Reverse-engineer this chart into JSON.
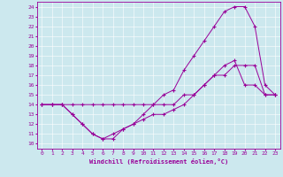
{
  "xlabel": "Windchill (Refroidissement éolien,°C)",
  "background_color": "#cce8ee",
  "line_color": "#990099",
  "xlim": [
    -0.5,
    23.5
  ],
  "ylim": [
    9.5,
    24.5
  ],
  "xticks": [
    0,
    1,
    2,
    3,
    4,
    5,
    6,
    7,
    8,
    9,
    10,
    11,
    12,
    13,
    14,
    15,
    16,
    17,
    18,
    19,
    20,
    21,
    22,
    23
  ],
  "yticks": [
    10,
    11,
    12,
    13,
    14,
    15,
    16,
    17,
    18,
    19,
    20,
    21,
    22,
    23,
    24
  ],
  "line1_x": [
    0,
    1,
    2,
    3,
    4,
    5,
    6,
    7,
    8,
    9,
    10,
    11,
    12,
    13,
    14,
    15,
    16,
    17,
    18,
    19,
    20,
    21,
    22,
    23
  ],
  "line1_y": [
    14,
    14,
    14,
    14,
    14,
    14,
    14,
    14,
    14,
    14,
    14,
    14,
    14,
    14,
    15,
    15,
    16,
    17,
    17,
    18,
    18,
    18,
    15,
    15
  ],
  "line2_x": [
    0,
    1,
    2,
    3,
    4,
    5,
    6,
    7,
    8,
    9,
    10,
    11,
    12,
    13,
    14,
    15,
    16,
    17,
    18,
    19,
    20,
    21,
    22,
    23
  ],
  "line2_y": [
    14,
    14,
    14,
    13,
    12,
    11,
    10.5,
    10.5,
    11.5,
    12,
    13,
    14,
    15,
    15.5,
    17.5,
    19,
    20.5,
    22,
    23.5,
    24,
    24,
    22,
    16,
    15
  ],
  "line3_x": [
    0,
    1,
    2,
    3,
    4,
    5,
    6,
    7,
    8,
    9,
    10,
    11,
    12,
    13,
    14,
    15,
    16,
    17,
    18,
    19,
    20,
    21,
    22,
    23
  ],
  "line3_y": [
    14,
    14,
    14,
    13,
    12,
    11,
    10.5,
    11,
    11.5,
    12,
    12.5,
    13,
    13,
    13.5,
    14,
    15,
    16,
    17,
    18,
    18.5,
    16,
    16,
    15,
    15
  ]
}
